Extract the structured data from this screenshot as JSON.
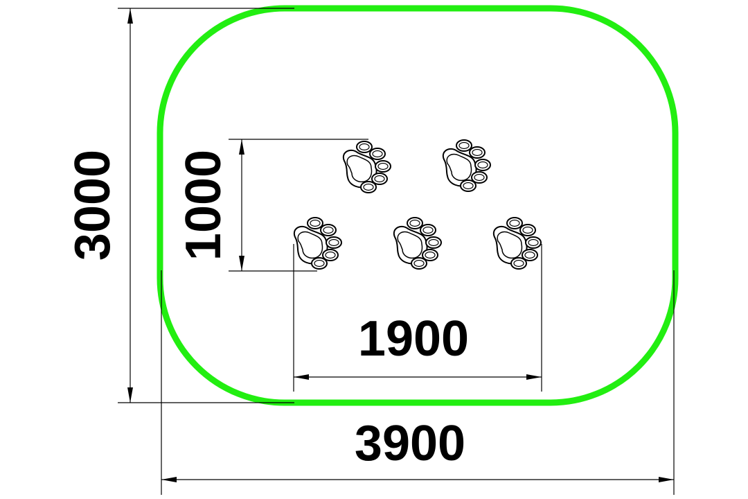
{
  "colors": {
    "border": "#22ee11",
    "line": "#000000",
    "background": "#ffffff"
  },
  "dimensions": {
    "overall_height": "3000",
    "overall_width": "3900",
    "paw_group_height": "1000",
    "paw_group_width": "1900"
  },
  "elements": {
    "border_shape": "rounded-rectangle",
    "paw_icon": "paw-print-icon",
    "paw_count": 5
  }
}
